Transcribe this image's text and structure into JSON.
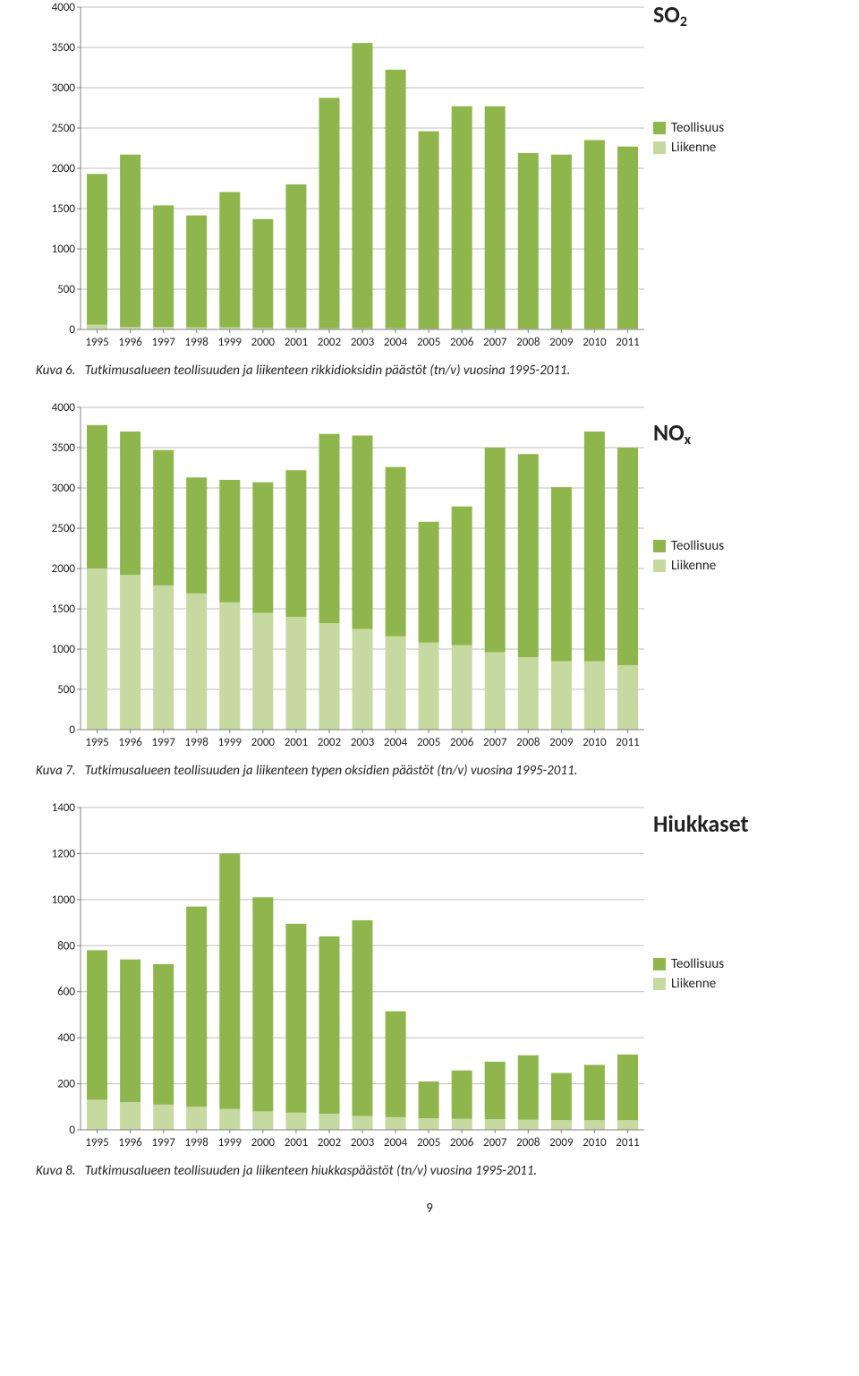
{
  "colors": {
    "teollisuus": "#8fb64d",
    "liikenne": "#c6d9a0",
    "grid": "#bfbfbf",
    "axis": "#808080",
    "text": "#222222",
    "bg": "#ffffff"
  },
  "legend": {
    "teollisuus_label": "Teollisuus",
    "liikenne_label": "Liikenne"
  },
  "charts": [
    {
      "id": "so2",
      "type": "stacked-bar",
      "side_title": "SO",
      "side_title_sub": "2",
      "categories": [
        "1995",
        "1996",
        "1997",
        "1998",
        "1999",
        "2000",
        "2001",
        "2002",
        "2003",
        "2004",
        "2005",
        "2006",
        "2007",
        "2008",
        "2009",
        "2010",
        "2011"
      ],
      "series": [
        {
          "name": "Liikenne",
          "color_key": "liikenne",
          "values": [
            60,
            30,
            30,
            25,
            25,
            20,
            20,
            15,
            15,
            15,
            10,
            10,
            10,
            10,
            10,
            10,
            10
          ]
        },
        {
          "name": "Teollisuus",
          "color_key": "teollisuus",
          "values": [
            1870,
            2140,
            1510,
            1390,
            1680,
            1350,
            1780,
            2860,
            3540,
            3210,
            2450,
            2760,
            2760,
            2180,
            2160,
            2340,
            2260
          ]
        }
      ],
      "ylim": [
        0,
        4000
      ],
      "ytick_step": 500,
      "bar_width": 0.62,
      "caption_kuva": "Kuva 6.",
      "caption_text": "Tutkimusalueen teollisuuden ja liikenteen rikkidioksidin päästöt (tn/v) vuosina 1995-2011.",
      "axis_fontsize": 13
    },
    {
      "id": "nox",
      "type": "stacked-bar",
      "side_title": "NO",
      "side_title_sub": "x",
      "categories": [
        "1995",
        "1996",
        "1997",
        "1998",
        "1999",
        "2000",
        "2001",
        "2002",
        "2003",
        "2004",
        "2005",
        "2006",
        "2007",
        "2008",
        "2009",
        "2010",
        "2011"
      ],
      "series": [
        {
          "name": "Liikenne",
          "color_key": "liikenne",
          "values": [
            2000,
            1920,
            1790,
            1690,
            1580,
            1450,
            1400,
            1320,
            1250,
            1160,
            1080,
            1050,
            960,
            900,
            850,
            850,
            800
          ]
        },
        {
          "name": "Teollisuus",
          "color_key": "teollisuus",
          "values": [
            1780,
            1780,
            1680,
            1440,
            1520,
            1620,
            1820,
            2350,
            2400,
            2100,
            1500,
            1720,
            2540,
            2520,
            2160,
            2850,
            2700
          ]
        }
      ],
      "ylim": [
        0,
        4000
      ],
      "ytick_step": 500,
      "bar_width": 0.62,
      "caption_kuva": "Kuva 7.",
      "caption_text": "Tutkimusalueen teollisuuden ja liikenteen typen oksidien päästöt (tn/v) vuosina 1995-2011.",
      "axis_fontsize": 13
    },
    {
      "id": "hiukkaset",
      "type": "stacked-bar",
      "side_title": "Hiukkaset",
      "side_title_sub": "",
      "categories": [
        "1995",
        "1996",
        "1997",
        "1998",
        "1999",
        "2000",
        "2001",
        "2002",
        "2003",
        "2004",
        "2005",
        "2006",
        "2007",
        "2008",
        "2009",
        "2010",
        "2011"
      ],
      "series": [
        {
          "name": "Liikenne",
          "color_key": "liikenne",
          "values": [
            130,
            120,
            110,
            100,
            90,
            80,
            75,
            70,
            60,
            55,
            50,
            48,
            46,
            44,
            42,
            42,
            42
          ]
        },
        {
          "name": "Teollisuus",
          "color_key": "teollisuus",
          "values": [
            650,
            620,
            610,
            870,
            1110,
            930,
            820,
            770,
            850,
            460,
            160,
            210,
            250,
            280,
            205,
            240,
            285
          ]
        }
      ],
      "ylim": [
        0,
        1400
      ],
      "ytick_step": 200,
      "bar_width": 0.62,
      "caption_kuva": "Kuva 8.",
      "caption_text": "Tutkimusalueen teollisuuden ja liikenteen hiukkaspäästöt (tn/v) vuosina 1995-2011.",
      "axis_fontsize": 13
    }
  ],
  "page_number": "9"
}
